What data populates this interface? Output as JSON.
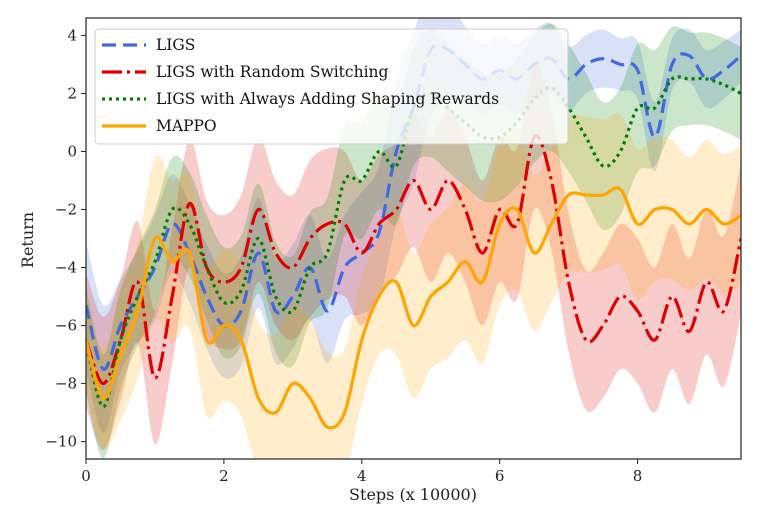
{
  "chart_data": {
    "type": "line",
    "title": "",
    "xlabel": "Steps (x 10000)",
    "ylabel": "Return",
    "xlim": [
      0,
      9.5
    ],
    "ylim": [
      -10.6,
      4.6
    ],
    "xticks": [
      0,
      2,
      4,
      6,
      8
    ],
    "yticks": [
      -10,
      -8,
      -6,
      -4,
      -2,
      0,
      2,
      4
    ],
    "ytick_labels": [
      "−10",
      "−8",
      "−6",
      "−4",
      "−2",
      "0",
      "2",
      "4"
    ],
    "legend_position": "top-left",
    "x": [
      0,
      0.25,
      0.5,
      0.75,
      1.0,
      1.25,
      1.5,
      1.75,
      2.0,
      2.25,
      2.5,
      2.75,
      3.0,
      3.25,
      3.5,
      3.75,
      4.0,
      4.25,
      4.5,
      4.75,
      5.0,
      5.25,
      5.5,
      5.75,
      6.0,
      6.25,
      6.5,
      6.75,
      7.0,
      7.25,
      7.5,
      7.75,
      8.0,
      8.25,
      8.5,
      8.75,
      9.0,
      9.25,
      9.5
    ],
    "series": [
      {
        "name": "LIGS",
        "color": "#4169e1",
        "dash": "14,7",
        "values": [
          -5.3,
          -7.5,
          -6.0,
          -5.0,
          -4.0,
          -2.5,
          -3.5,
          -5.0,
          -6.0,
          -5.5,
          -3.5,
          -5.5,
          -5.0,
          -4.0,
          -5.5,
          -4.0,
          -3.5,
          -2.8,
          0.0,
          1.5,
          3.5,
          3.5,
          3.0,
          2.5,
          2.8,
          2.5,
          3.0,
          3.2,
          2.5,
          3.0,
          3.2,
          3.0,
          2.8,
          0.5,
          3.0,
          3.3,
          2.5,
          2.8,
          3.3
        ],
        "band": [
          2.2,
          2.2,
          1.6,
          1.6,
          1.8,
          1.7,
          1.7,
          1.8,
          1.8,
          1.9,
          1.9,
          1.8,
          1.8,
          1.8,
          1.8,
          1.8,
          2.1,
          2.3,
          2.5,
          2.6,
          2.3,
          1.8,
          1.3,
          1.2,
          1.2,
          1.2,
          1.2,
          1.2,
          1.1,
          1.0,
          1.0,
          0.9,
          1.0,
          1.2,
          0.9,
          0.9,
          1.0,
          1.0,
          0.9
        ]
      },
      {
        "name": "LIGS with Random Switching",
        "color": "#e00000",
        "dash": "20,5,3,5",
        "values": [
          -6.5,
          -8.0,
          -6.5,
          -4.5,
          -7.8,
          -5.0,
          -1.8,
          -4.0,
          -4.5,
          -4.0,
          -2.0,
          -3.5,
          -4.0,
          -3.0,
          -2.5,
          -2.5,
          -3.5,
          -2.5,
          -2.0,
          -1.0,
          -2.0,
          -1.0,
          -2.0,
          -3.5,
          -2.0,
          -2.5,
          0.5,
          -1.0,
          -4.5,
          -6.5,
          -6.0,
          -5.0,
          -5.5,
          -6.5,
          -5.0,
          -6.2,
          -4.5,
          -5.5,
          -3.0
        ],
        "band": [
          2.3,
          2.3,
          2.1,
          2.1,
          2.3,
          2.3,
          2.2,
          2.3,
          2.3,
          2.5,
          2.5,
          2.5,
          2.5,
          2.7,
          2.6,
          2.5,
          2.5,
          2.4,
          2.3,
          2.3,
          2.5,
          2.5,
          2.5,
          2.5,
          2.5,
          2.6,
          2.5,
          2.4,
          2.4,
          2.4,
          2.5,
          2.5,
          2.5,
          2.5,
          2.5,
          2.5,
          2.5,
          2.6,
          2.6
        ]
      },
      {
        "name": "LIGS with Always Adding Shaping Rewards",
        "color": "#008000",
        "dash": "3,4",
        "values": [
          -6.5,
          -8.8,
          -6.5,
          -5.0,
          -3.8,
          -2.0,
          -2.5,
          -4.0,
          -5.2,
          -4.8,
          -3.0,
          -5.0,
          -5.5,
          -4.0,
          -3.5,
          -1.0,
          -1.0,
          0.0,
          -0.5,
          1.5,
          2.0,
          1.5,
          1.0,
          0.5,
          0.5,
          1.0,
          1.8,
          2.2,
          1.5,
          0.5,
          -0.5,
          0.0,
          1.5,
          1.5,
          2.5,
          2.5,
          2.5,
          2.3,
          2.0
        ],
        "band": [
          1.8,
          1.8,
          1.7,
          1.7,
          1.8,
          1.8,
          1.8,
          1.8,
          1.9,
          1.9,
          1.9,
          1.9,
          1.9,
          1.9,
          1.9,
          1.9,
          2.0,
          2.0,
          2.0,
          2.0,
          2.2,
          2.2,
          2.2,
          2.2,
          2.2,
          2.2,
          2.2,
          2.2,
          2.2,
          2.2,
          2.2,
          2.2,
          2.2,
          2.0,
          1.8,
          1.6,
          1.6,
          1.6,
          1.6
        ]
      },
      {
        "name": "MAPPO",
        "color": "#ffa500",
        "dash": "",
        "values": [
          -6.5,
          -8.5,
          -7.0,
          -5.5,
          -3.0,
          -3.8,
          -3.5,
          -6.5,
          -6.0,
          -6.5,
          -8.5,
          -9.0,
          -8.0,
          -8.5,
          -9.5,
          -9.0,
          -6.5,
          -5.0,
          -4.5,
          -6.0,
          -5.0,
          -4.5,
          -3.8,
          -4.5,
          -2.5,
          -2.0,
          -3.5,
          -2.5,
          -1.5,
          -1.5,
          -1.5,
          -1.3,
          -2.5,
          -2.0,
          -2.0,
          -2.5,
          -2.0,
          -2.5,
          -2.2
        ],
        "band": [
          1.7,
          1.7,
          2.3,
          2.3,
          2.8,
          2.8,
          2.6,
          2.6,
          2.6,
          2.6,
          2.6,
          2.7,
          2.7,
          2.7,
          2.6,
          2.2,
          2.2,
          2.0,
          2.5,
          2.5,
          2.5,
          2.6,
          2.7,
          2.8,
          2.8,
          2.8,
          2.7,
          2.7,
          2.7,
          2.7,
          2.6,
          2.6,
          2.6,
          2.5,
          2.4,
          2.3,
          2.4,
          2.4,
          2.4
        ]
      }
    ]
  }
}
